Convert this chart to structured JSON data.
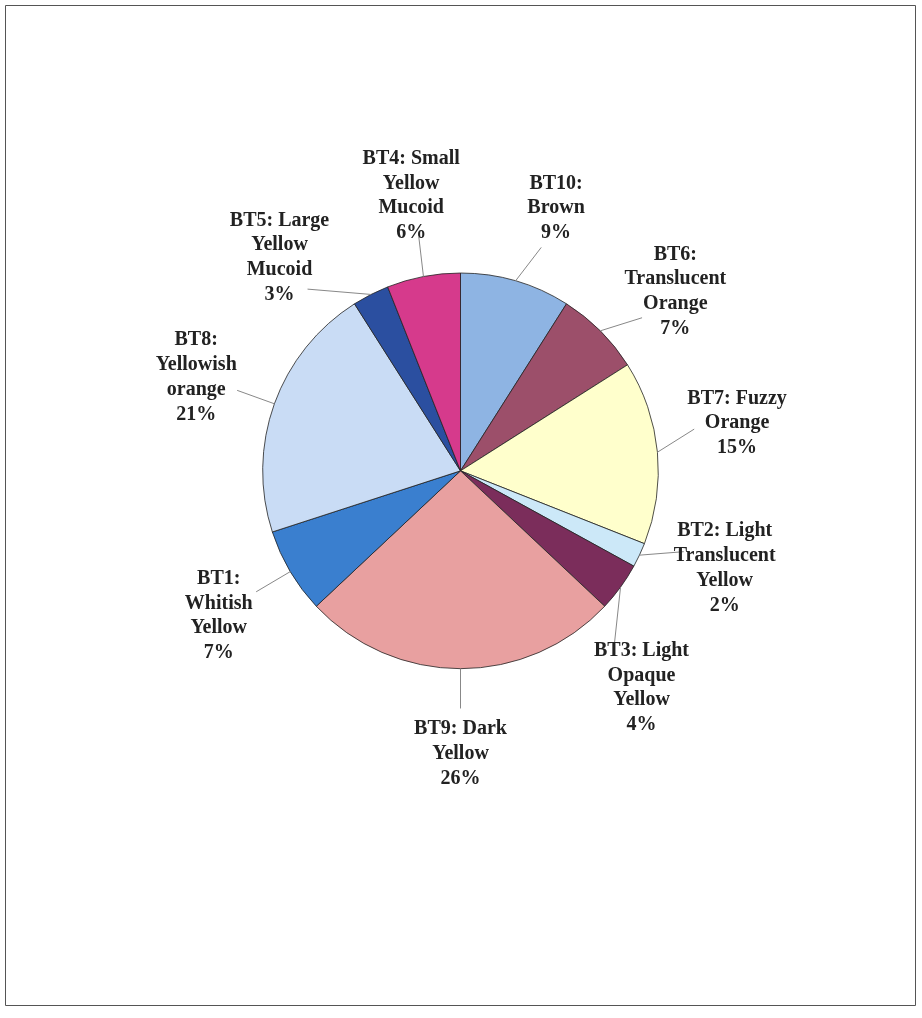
{
  "chart_data": {
    "type": "pie",
    "categories": [
      "BT10: Brown",
      "BT6: Translucent Orange",
      "BT7: Fuzzy Orange",
      "BT2: Light Translucent Yellow",
      "BT3: Light Opaque Yellow",
      "BT9: Dark Yellow",
      "BT1: Whitish Yellow",
      "BT8: Yellowish orange",
      "BT5: Large Yellow Mucoid",
      "BT4: Small Yellow Mucoid"
    ],
    "values": [
      9,
      7,
      15,
      2,
      4,
      26,
      7,
      21,
      3,
      6
    ],
    "value_labels": [
      "9%",
      "7%",
      "15%",
      "2%",
      "4%",
      "26%",
      "7%",
      "21%",
      "3%",
      "6%"
    ],
    "colors": [
      "#8eb4e3",
      "#9c4f6a",
      "#ffffcc",
      "#cce8f8",
      "#7b2d5b",
      "#e8a0a0",
      "#3a7fcf",
      "#c9dcf5",
      "#2b4fa0",
      "#d63a8c"
    ]
  }
}
